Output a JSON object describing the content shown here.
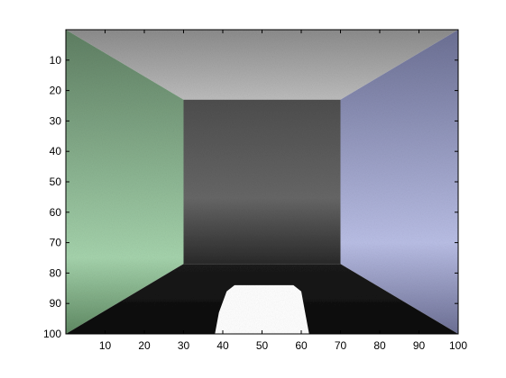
{
  "figure": {
    "colors": {
      "background": "#ffffff",
      "axis": "#000000",
      "ceiling": "#8a8a8a",
      "left_wall": "#7fae86",
      "right_wall": "#9da3c8",
      "back_wall": "#5a5a5a",
      "floor": "#101010",
      "light_patch": "#ffffff"
    }
  },
  "chart_data": {
    "type": "heatmap",
    "title": "",
    "xlabel": "",
    "ylabel": "",
    "xlim": [
      0,
      100
    ],
    "ylim": [
      100,
      0
    ],
    "grid": false,
    "x_ticks": [
      10,
      20,
      30,
      40,
      50,
      60,
      70,
      80,
      90,
      100
    ],
    "y_ticks": [
      10,
      20,
      30,
      40,
      50,
      60,
      70,
      80,
      90,
      100
    ],
    "x_tick_labels": [
      "10",
      "20",
      "30",
      "40",
      "50",
      "60",
      "70",
      "80",
      "90",
      "100"
    ],
    "y_tick_labels": [
      "10",
      "20",
      "30",
      "40",
      "50",
      "60",
      "70",
      "80",
      "90",
      "100"
    ],
    "scene": "rendered room: light gray ceiling, green left wall, blue right wall, dark gray back wall, dark floor with white light patch",
    "regions": [
      {
        "name": "ceiling",
        "polygon": [
          [
            0,
            0
          ],
          [
            100,
            0
          ],
          [
            70,
            23
          ],
          [
            30,
            23
          ]
        ]
      },
      {
        "name": "left_wall",
        "polygon": [
          [
            0,
            0
          ],
          [
            30,
            23
          ],
          [
            30,
            77
          ],
          [
            0,
            100
          ]
        ]
      },
      {
        "name": "right_wall",
        "polygon": [
          [
            100,
            0
          ],
          [
            100,
            100
          ],
          [
            70,
            77
          ],
          [
            70,
            23
          ]
        ]
      },
      {
        "name": "back_wall",
        "polygon": [
          [
            30,
            23
          ],
          [
            70,
            23
          ],
          [
            70,
            77
          ],
          [
            30,
            77
          ]
        ]
      },
      {
        "name": "floor",
        "polygon": [
          [
            0,
            100
          ],
          [
            30,
            77
          ],
          [
            70,
            77
          ],
          [
            100,
            100
          ]
        ]
      },
      {
        "name": "light_patch",
        "polygon": [
          [
            38,
            100
          ],
          [
            39,
            93
          ],
          [
            41,
            86
          ],
          [
            43,
            84
          ],
          [
            58,
            84
          ],
          [
            60,
            86
          ],
          [
            61,
            93
          ],
          [
            62,
            100
          ]
        ]
      }
    ]
  }
}
